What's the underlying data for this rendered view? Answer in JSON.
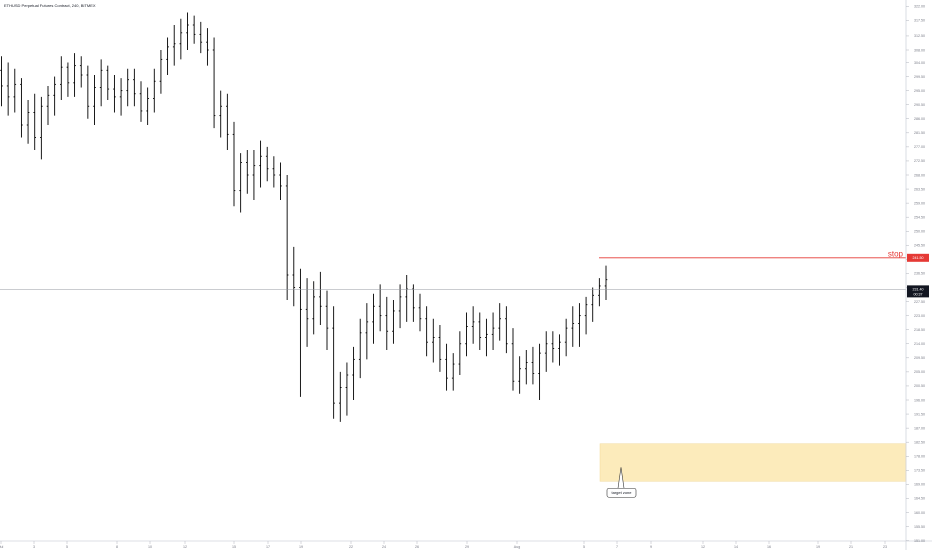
{
  "chart_data": {
    "type": "ohlc",
    "title": "ETHUSD Perpetual Futures Contract, 240, BITMEX",
    "ylim": [
      148,
      324
    ],
    "y_ticks": [
      322.0,
      317.5,
      312.5,
      308.0,
      304.0,
      299.5,
      295.0,
      290.5,
      286.0,
      281.5,
      277.0,
      272.5,
      268.0,
      263.5,
      259.0,
      254.5,
      250.0,
      245.5,
      241.0,
      236.5,
      232.0,
      227.5,
      223.0,
      218.5,
      214.0,
      209.5,
      205.0,
      200.5,
      196.0,
      191.5,
      187.0,
      182.5,
      178.0,
      173.5,
      169.0,
      164.5,
      160.0,
      155.5,
      151.0
    ],
    "x_ticks": [
      "Jul",
      "3",
      "5",
      "8",
      "10",
      "12",
      "15",
      "17",
      "19",
      "22",
      "24",
      "26",
      "29",
      "Aug",
      "5",
      "7",
      "9",
      "12",
      "14",
      "16",
      "19",
      "21",
      "23"
    ],
    "current_price": "231.40",
    "current_price_sub": "00:37",
    "stop_price": "241.50",
    "stop_label": "stop",
    "target_zone": {
      "low": 170.0,
      "high": 182.0,
      "label": "target zone"
    },
    "series": [
      {
        "bars": [
          [
            301.5,
            306.0,
            290.0,
            296.5
          ],
          [
            296.5,
            304.0,
            287.0,
            293.0
          ],
          [
            293.0,
            302.0,
            288.0,
            297.0
          ],
          [
            297.0,
            299.0,
            280.0,
            284.0
          ],
          [
            284.0,
            292.0,
            278.0,
            288.0
          ],
          [
            288.0,
            294.0,
            276.0,
            280.0
          ],
          [
            280.0,
            293.0,
            273.0,
            290.0
          ],
          [
            290.0,
            296.5,
            284.0,
            293.5
          ],
          [
            293.5,
            299.5,
            287.0,
            297.0
          ],
          [
            297.0,
            306.0,
            292.0,
            302.5
          ],
          [
            302.5,
            304.0,
            293.0,
            297.5
          ],
          [
            297.5,
            307.0,
            293.0,
            303.0
          ],
          [
            303.0,
            306.0,
            296.0,
            300.0
          ],
          [
            300.0,
            303.0,
            286.0,
            290.0
          ],
          [
            290.0,
            300.0,
            284.0,
            296.0
          ],
          [
            296.0,
            305.0,
            290.0,
            301.5
          ],
          [
            301.5,
            303.0,
            292.0,
            295.5
          ],
          [
            295.5,
            300.0,
            288.0,
            293.0
          ],
          [
            293.0,
            299.0,
            287.0,
            295.0
          ],
          [
            295.0,
            302.0,
            290.0,
            298.5
          ],
          [
            298.5,
            302.0,
            290.0,
            294.0
          ],
          [
            294.0,
            298.0,
            285.0,
            288.5
          ],
          [
            288.5,
            296.0,
            284.0,
            292.5
          ],
          [
            292.5,
            302.0,
            288.0,
            298.0
          ],
          [
            298.0,
            308.0,
            294.0,
            305.0
          ],
          [
            305.0,
            312.0,
            300.0,
            309.0
          ],
          [
            309.0,
            316.0,
            303.0,
            310.0
          ],
          [
            310.0,
            318.0,
            305.0,
            313.5
          ],
          [
            313.5,
            320.0,
            308.0,
            316.0
          ],
          [
            316.0,
            319.0,
            310.0,
            313.0
          ],
          [
            313.0,
            317.0,
            307.0,
            310.5
          ],
          [
            310.5,
            315.0,
            303.0,
            308.0
          ],
          [
            308.0,
            312.0,
            283.0,
            287.0
          ],
          [
            287.0,
            295.0,
            280.0,
            290.0
          ],
          [
            290.0,
            294.0,
            276.0,
            281.0
          ],
          [
            281.0,
            285.0,
            258.0,
            263.0
          ],
          [
            263.0,
            275.0,
            256.0,
            272.0
          ],
          [
            272.0,
            276.0,
            262.0,
            268.0
          ],
          [
            268.0,
            276.0,
            260.0,
            271.0
          ],
          [
            271.0,
            279.0,
            264.0,
            274.0
          ],
          [
            274.0,
            277.0,
            266.0,
            270.0
          ],
          [
            270.0,
            274.0,
            264.0,
            268.0
          ],
          [
            268.0,
            272.0,
            260.0,
            264.5
          ],
          [
            264.5,
            268.0,
            228.0,
            236.0
          ],
          [
            236.0,
            245.0,
            226.0,
            232.0
          ],
          [
            232.0,
            238.0,
            197.0,
            225.0
          ],
          [
            225.0,
            235.0,
            213.0,
            222.0
          ],
          [
            222.0,
            234.0,
            217.0,
            229.0
          ],
          [
            229.0,
            237.0,
            220.0,
            226.0
          ],
          [
            226.0,
            231.0,
            212.0,
            219.0
          ],
          [
            219.0,
            226.0,
            190.0,
            195.0
          ],
          [
            195.0,
            205.0,
            189.0,
            200.0
          ],
          [
            200.0,
            208.0,
            191.0,
            204.0
          ],
          [
            204.0,
            213.0,
            196.0,
            209.0
          ],
          [
            209.0,
            222.0,
            203.0,
            217.5
          ],
          [
            217.5,
            227.0,
            209.0,
            221.0
          ],
          [
            221.0,
            230.0,
            214.0,
            226.0
          ],
          [
            226.0,
            233.0,
            218.0,
            223.0
          ],
          [
            223.0,
            229.0,
            212.0,
            218.0
          ],
          [
            218.0,
            228.0,
            214.0,
            224.5
          ],
          [
            224.5,
            233.0,
            219.0,
            229.0
          ],
          [
            229.0,
            236.0,
            221.0,
            231.5
          ],
          [
            231.5,
            233.0,
            221.0,
            225.5
          ],
          [
            225.5,
            230.0,
            218.0,
            222.0
          ],
          [
            222.0,
            226.0,
            210.0,
            214.5
          ],
          [
            214.5,
            222.0,
            208.0,
            216.0
          ],
          [
            216.0,
            220.0,
            205.0,
            209.0
          ],
          [
            209.0,
            214.0,
            199.0,
            203.0
          ],
          [
            203.0,
            211.0,
            199.0,
            207.5
          ],
          [
            207.5,
            218.0,
            204.0,
            214.0
          ],
          [
            214.0,
            224.0,
            210.0,
            219.5
          ],
          [
            219.5,
            226.0,
            214.0,
            221.0
          ],
          [
            221.0,
            224.0,
            212.0,
            216.0
          ],
          [
            216.0,
            222.0,
            210.0,
            217.0
          ],
          [
            217.0,
            224.0,
            212.0,
            219.0
          ],
          [
            219.0,
            227.0,
            215.0,
            222.0
          ],
          [
            222.0,
            226.0,
            211.0,
            214.0
          ],
          [
            214.0,
            219.0,
            199.0,
            202.0
          ],
          [
            202.0,
            210.0,
            198.0,
            206.0
          ],
          [
            206.0,
            212.0,
            201.0,
            208.0
          ],
          [
            208.0,
            213.0,
            201.0,
            204.5
          ],
          [
            204.5,
            214.0,
            196.0,
            211.0
          ],
          [
            211.0,
            218.0,
            205.0,
            214.0
          ],
          [
            214.0,
            218.0,
            208.0,
            212.5
          ],
          [
            212.5,
            217.0,
            207.0,
            214.5
          ],
          [
            214.5,
            222.0,
            210.0,
            219.0
          ],
          [
            219.0,
            226.0,
            213.0,
            220.5
          ],
          [
            220.5,
            227.0,
            213.0,
            223.0
          ],
          [
            223.0,
            229.0,
            217.0,
            226.5
          ],
          [
            226.5,
            232.0,
            221.0,
            229.5
          ],
          [
            229.5,
            235.0,
            226.0,
            232.5
          ],
          [
            232.5,
            239.0,
            228.0,
            234.5
          ]
        ]
      }
    ]
  }
}
